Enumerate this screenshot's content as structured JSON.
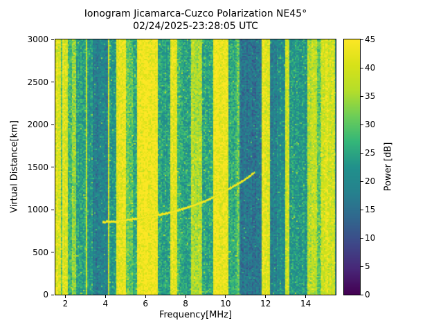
{
  "chart_data": {
    "type": "heatmap",
    "title": "Ionogram Jicamarca-Cuzco Polarization NE45°",
    "subtitle": "02/24/2025-23:28:05 UTC",
    "xlabel": "Frequency[MHz]",
    "ylabel": "Virtual Distance[km]",
    "colorbar_label": "Power [dB]",
    "colormap": "viridis",
    "xlim": [
      1.5,
      15.5
    ],
    "ylim": [
      0,
      3000
    ],
    "clim": [
      0,
      45
    ],
    "xticks": [
      2,
      4,
      6,
      8,
      10,
      12,
      14
    ],
    "yticks": [
      0,
      500,
      1000,
      1500,
      2000,
      2500,
      3000
    ],
    "cticks": [
      0,
      5,
      10,
      15,
      20,
      25,
      30,
      35,
      40,
      45
    ],
    "background_power": {
      "mean": 23,
      "spread": 6.5
    },
    "rfi_bands": [
      {
        "f0": 1.5,
        "f1": 1.75,
        "power": 40
      },
      {
        "f0": 1.75,
        "f1": 1.85,
        "power": 30
      },
      {
        "f0": 1.85,
        "f1": 2.1,
        "power": 41
      },
      {
        "f0": 2.1,
        "f1": 2.35,
        "power": 29
      },
      {
        "f0": 2.35,
        "f1": 2.55,
        "power": 35
      },
      {
        "f0": 2.55,
        "f1": 3.0,
        "power": 24
      },
      {
        "f0": 3.0,
        "f1": 3.1,
        "power": 38
      },
      {
        "f0": 3.1,
        "f1": 3.35,
        "power": 23
      },
      {
        "f0": 3.35,
        "f1": 4.1,
        "power": 18
      },
      {
        "f0": 4.1,
        "f1": 4.2,
        "power": 40
      },
      {
        "f0": 4.2,
        "f1": 4.55,
        "power": 23
      },
      {
        "f0": 4.55,
        "f1": 5.05,
        "power": 42
      },
      {
        "f0": 5.05,
        "f1": 5.35,
        "power": 30
      },
      {
        "f0": 5.35,
        "f1": 5.55,
        "power": 26
      },
      {
        "f0": 5.55,
        "f1": 6.6,
        "power": 44
      },
      {
        "f0": 6.6,
        "f1": 7.25,
        "power": 24
      },
      {
        "f0": 7.25,
        "f1": 7.55,
        "power": 42
      },
      {
        "f0": 7.55,
        "f1": 7.8,
        "power": 28
      },
      {
        "f0": 7.8,
        "f1": 8.25,
        "power": 25
      },
      {
        "f0": 8.25,
        "f1": 8.8,
        "power": 36
      },
      {
        "f0": 8.8,
        "f1": 9.35,
        "power": 25
      },
      {
        "f0": 9.35,
        "f1": 10.15,
        "power": 43
      },
      {
        "f0": 10.15,
        "f1": 10.55,
        "power": 26
      },
      {
        "f0": 10.55,
        "f1": 10.7,
        "power": 30
      },
      {
        "f0": 10.7,
        "f1": 11.8,
        "power": 16
      },
      {
        "f0": 11.8,
        "f1": 12.2,
        "power": 42
      },
      {
        "f0": 12.2,
        "f1": 12.55,
        "power": 18
      },
      {
        "f0": 12.55,
        "f1": 12.95,
        "power": 21
      },
      {
        "f0": 12.95,
        "f1": 13.15,
        "power": 39
      },
      {
        "f0": 13.15,
        "f1": 14.1,
        "power": 23
      },
      {
        "f0": 14.1,
        "f1": 14.55,
        "power": 37
      },
      {
        "f0": 14.55,
        "f1": 14.8,
        "power": 30
      },
      {
        "f0": 14.8,
        "f1": 15.5,
        "power": 40
      }
    ],
    "echo_trace": {
      "power": 45,
      "points": [
        [
          3.85,
          855
        ],
        [
          4.5,
          865
        ],
        [
          5.0,
          880
        ],
        [
          5.5,
          895
        ],
        [
          6.0,
          915
        ],
        [
          6.5,
          935
        ],
        [
          7.0,
          955
        ],
        [
          7.5,
          985
        ],
        [
          8.0,
          1020
        ],
        [
          8.5,
          1060
        ],
        [
          9.0,
          1105
        ],
        [
          9.5,
          1160
        ],
        [
          10.0,
          1225
        ],
        [
          10.5,
          1290
        ],
        [
          11.0,
          1360
        ],
        [
          11.45,
          1440
        ]
      ]
    },
    "colormap_stops": [
      [
        0.0,
        68,
        1,
        84
      ],
      [
        0.1,
        72,
        40,
        120
      ],
      [
        0.2,
        62,
        73,
        137
      ],
      [
        0.3,
        49,
        104,
        142
      ],
      [
        0.4,
        38,
        130,
        142
      ],
      [
        0.5,
        33,
        145,
        140
      ],
      [
        0.6,
        53,
        183,
        121
      ],
      [
        0.7,
        110,
        206,
        88
      ],
      [
        0.8,
        181,
        222,
        43
      ],
      [
        0.9,
        216,
        226,
        25
      ],
      [
        1.0,
        253,
        231,
        37
      ]
    ]
  }
}
